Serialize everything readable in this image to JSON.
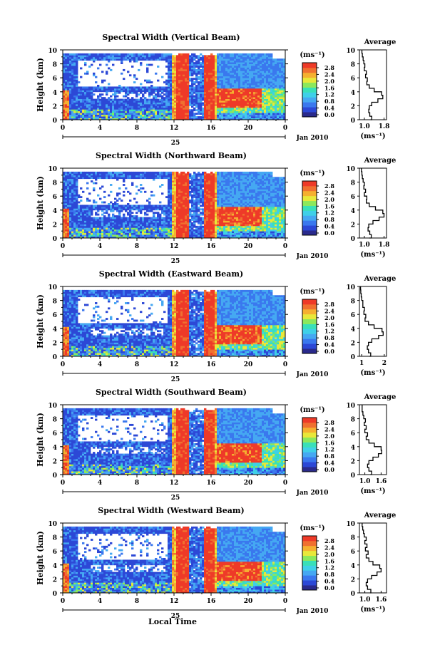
{
  "colors": {
    "scale": [
      "#2a2a8c",
      "#2c48d6",
      "#3a78ee",
      "#45a8f2",
      "#3fd0e8",
      "#39e0b8",
      "#8ce85c",
      "#e8e83a",
      "#f5b030",
      "#f07030",
      "#ee3a28"
    ]
  },
  "common": {
    "time_ticks": [
      "0",
      "4",
      "8",
      "12",
      "16",
      "20",
      "0"
    ],
    "day_label": "25",
    "month_label": "Jan 2010",
    "height_label": "Height (km)",
    "colorbar_unit": "(ms⁻¹)",
    "avg_title": "Average",
    "avg_unit": "(ms⁻¹)",
    "xlabel": "Local Time"
  },
  "chart_data": [
    {
      "type": "heatmap",
      "title": "Spectral Width (Vertical Beam)",
      "x": "time (h)",
      "xlim": [
        0,
        24
      ],
      "ylim": [
        0,
        10
      ],
      "yticks": [
        "0",
        "2",
        "4",
        "6",
        "8",
        "10"
      ],
      "colorbar_ticks": [
        "0.0",
        "0.4",
        "0.8",
        "1.2",
        "1.6",
        "2.0",
        "2.4",
        "2.8"
      ],
      "profile": {
        "type": "line",
        "xticks": [
          "1.0",
          "1.8"
        ],
        "xlim": [
          0.8,
          1.9
        ],
        "yticks": [
          "0",
          "2",
          "4",
          "6",
          "8",
          "10"
        ],
        "height": [
          0,
          0.5,
          1,
          1.5,
          2,
          2.5,
          3,
          3.5,
          4,
          4.5,
          5,
          5.5,
          6,
          6.5,
          7,
          7.5,
          8,
          8.5,
          9,
          9.5,
          10
        ],
        "values": [
          1.25,
          1.3,
          1.22,
          1.18,
          1.2,
          1.3,
          1.55,
          1.75,
          1.7,
          1.4,
          1.2,
          1.1,
          1.12,
          1.05,
          1.08,
          1.0,
          1.02,
          0.98,
          0.95,
          0.92,
          0.9
        ]
      }
    },
    {
      "type": "heatmap",
      "title": "Spectral Width (Northward Beam)",
      "x": "time (h)",
      "xlim": [
        0,
        24
      ],
      "ylim": [
        0,
        10
      ],
      "yticks": [
        "0",
        "2",
        "4",
        "6",
        "8",
        "10"
      ],
      "colorbar_ticks": [
        "0.0",
        "0.4",
        "0.8",
        "1.2",
        "1.6",
        "2.0",
        "2.4",
        "2.8"
      ],
      "profile": {
        "type": "line",
        "xticks": [
          "1.0",
          "1.8"
        ],
        "xlim": [
          0.8,
          1.9
        ],
        "yticks": [
          "0",
          "2",
          "4",
          "6",
          "8",
          "10"
        ],
        "height": [
          0,
          0.5,
          1,
          1.5,
          2,
          2.5,
          3,
          3.5,
          4,
          4.5,
          5,
          5.5,
          6,
          6.5,
          7,
          7.5,
          8,
          8.5,
          9,
          9.5,
          10
        ],
        "values": [
          1.2,
          1.28,
          1.22,
          1.15,
          1.18,
          1.35,
          1.6,
          1.8,
          1.75,
          1.45,
          1.2,
          1.08,
          1.1,
          1.0,
          1.05,
          0.98,
          1.0,
          0.95,
          0.92,
          0.9,
          0.88
        ]
      }
    },
    {
      "type": "heatmap",
      "title": "Spectral Width (Eastward Beam)",
      "x": "time (h)",
      "xlim": [
        0,
        24
      ],
      "ylim": [
        0,
        10
      ],
      "yticks": [
        "0",
        "2",
        "4",
        "6",
        "8",
        "10"
      ],
      "colorbar_ticks": [
        "0.0",
        "0.4",
        "0.8",
        "1.2",
        "1.6",
        "2.0",
        "2.4",
        "2.8"
      ],
      "profile": {
        "type": "line",
        "xticks": [
          "1",
          "2"
        ],
        "xlim": [
          0.9,
          2.1
        ],
        "yticks": [
          "0",
          "2",
          "4",
          "6",
          "8",
          "10"
        ],
        "height": [
          0,
          0.5,
          1,
          1.5,
          2,
          2.5,
          3,
          3.5,
          4,
          4.5,
          5,
          5.5,
          6,
          6.5,
          7,
          7.5,
          8,
          8.5,
          9,
          9.5,
          10
        ],
        "values": [
          1.35,
          1.4,
          1.3,
          1.25,
          1.3,
          1.45,
          1.75,
          1.95,
          1.9,
          1.55,
          1.3,
          1.15,
          1.18,
          1.1,
          1.12,
          1.05,
          1.05,
          1.0,
          0.98,
          0.96,
          0.95
        ]
      }
    },
    {
      "type": "heatmap",
      "title": "Spectral Width (Southward Beam)",
      "x": "time (h)",
      "xlim": [
        0,
        24
      ],
      "ylim": [
        0,
        10
      ],
      "yticks": [
        "0",
        "2",
        "4",
        "6",
        "8",
        "10"
      ],
      "colorbar_ticks": [
        "0.0",
        "0.4",
        "0.8",
        "1.2",
        "1.6",
        "2.0",
        "2.4",
        "2.8"
      ],
      "profile": {
        "type": "line",
        "xticks": [
          "1.0",
          "1.6"
        ],
        "xlim": [
          0.8,
          1.8
        ],
        "yticks": [
          "0",
          "2",
          "4",
          "6",
          "8",
          "10"
        ],
        "height": [
          0,
          0.5,
          1,
          1.5,
          2,
          2.5,
          3,
          3.5,
          4,
          4.5,
          5,
          5.5,
          6,
          6.5,
          7,
          7.5,
          8,
          8.5,
          9,
          9.5,
          10
        ],
        "values": [
          1.2,
          1.25,
          1.15,
          1.1,
          1.15,
          1.3,
          1.5,
          1.62,
          1.6,
          1.35,
          1.15,
          1.05,
          1.1,
          1.0,
          1.05,
          0.98,
          1.02,
          0.96,
          0.93,
          0.9,
          0.9
        ]
      }
    },
    {
      "type": "heatmap",
      "title": "Spectral Width (Westward Beam)",
      "x": "time (h)",
      "xlim": [
        0,
        24
      ],
      "ylim": [
        0,
        10
      ],
      "yticks": [
        "0",
        "2",
        "4",
        "6",
        "8",
        "10"
      ],
      "colorbar_ticks": [
        "0.0",
        "0.4",
        "0.8",
        "1.2",
        "1.6",
        "2.0",
        "2.4",
        "2.8"
      ],
      "profile": {
        "type": "line",
        "xticks": [
          "1.0",
          "1.6"
        ],
        "xlim": [
          0.8,
          1.8
        ],
        "yticks": [
          "0",
          "2",
          "4",
          "6",
          "8",
          "10"
        ],
        "height": [
          0,
          0.5,
          1,
          1.5,
          2,
          2.5,
          3,
          3.5,
          4,
          4.5,
          5,
          5.5,
          6,
          6.5,
          7,
          7.5,
          8,
          8.5,
          9,
          9.5,
          10
        ],
        "values": [
          1.2,
          1.22,
          1.1,
          1.05,
          1.1,
          1.25,
          1.45,
          1.6,
          1.55,
          1.3,
          1.15,
          1.05,
          1.12,
          1.02,
          1.08,
          1.0,
          1.05,
          0.98,
          0.95,
          0.92,
          0.9
        ]
      }
    }
  ]
}
